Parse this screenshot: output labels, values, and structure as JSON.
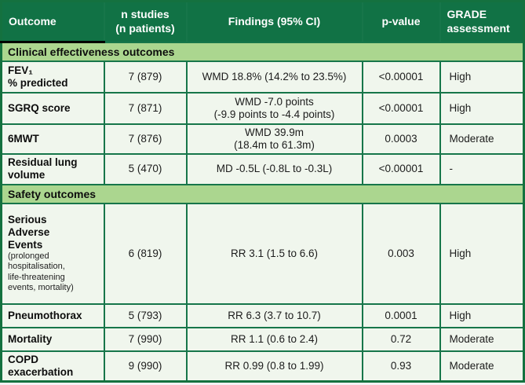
{
  "table": {
    "columns": [
      {
        "key": "outcome",
        "label": "Outcome"
      },
      {
        "key": "nstudies",
        "label": "n studies\n(n patients)"
      },
      {
        "key": "findings",
        "label": "Findings (95% CI)"
      },
      {
        "key": "pvalue",
        "label": "p-value"
      },
      {
        "key": "grade",
        "label": "GRADE\nassessment"
      }
    ],
    "sections": [
      {
        "title": "Clinical effectiveness outcomes",
        "rows": [
          {
            "outcome": "FEV₁\n% predicted",
            "sublabel": "",
            "nstudies": "7 (879)",
            "findings": "WMD 18.8% (14.2% to 23.5%)",
            "pvalue": "<0.00001",
            "grade": "High"
          },
          {
            "outcome": "SGRQ score",
            "sublabel": "",
            "nstudies": "7 (871)",
            "findings": "WMD -7.0 points\n(-9.9 points to -4.4 points)",
            "pvalue": "<0.00001",
            "grade": "High"
          },
          {
            "outcome": "6MWT",
            "sublabel": "",
            "nstudies": "7 (876)",
            "findings": "WMD 39.9m\n(18.4m to 61.3m)",
            "pvalue": "0.0003",
            "grade": "Moderate"
          },
          {
            "outcome": "Residual lung\nvolume",
            "sublabel": "",
            "nstudies": "5 (470)",
            "findings": "MD -0.5L (-0.8L to -0.3L)",
            "pvalue": "<0.00001",
            "grade": "-"
          }
        ]
      },
      {
        "title": "Safety outcomes",
        "rows": [
          {
            "outcome": "Serious\nAdverse\nEvents",
            "sublabel": "(prolonged\nhospitalisation,\nlife-threatening\nevents, mortality)",
            "nstudies": "6 (819)",
            "findings": "RR 3.1 (1.5 to 6.6)",
            "pvalue": "0.003",
            "grade": "High"
          },
          {
            "outcome": "Pneumothorax",
            "sublabel": "",
            "nstudies": "5 (793)",
            "findings": "RR 6.3 (3.7 to 10.7)",
            "pvalue": "0.0001",
            "grade": "High"
          },
          {
            "outcome": "Mortality",
            "sublabel": "",
            "nstudies": "7 (990)",
            "findings": "RR 1.1 (0.6 to 2.4)",
            "pvalue": "0.72",
            "grade": "Moderate"
          },
          {
            "outcome": "COPD\nexacerbation",
            "sublabel": "",
            "nstudies": "9 (990)",
            "findings": "RR 0.99 (0.8 to 1.99)",
            "pvalue": "0.93",
            "grade": "Moderate"
          }
        ]
      }
    ]
  },
  "colors": {
    "header_bg": "#117245",
    "header_text": "#fefefe",
    "section_bg": "#abd68f",
    "row_bg": "#f0f6ed",
    "border": "#17764a",
    "outer_border": "#14713f"
  }
}
